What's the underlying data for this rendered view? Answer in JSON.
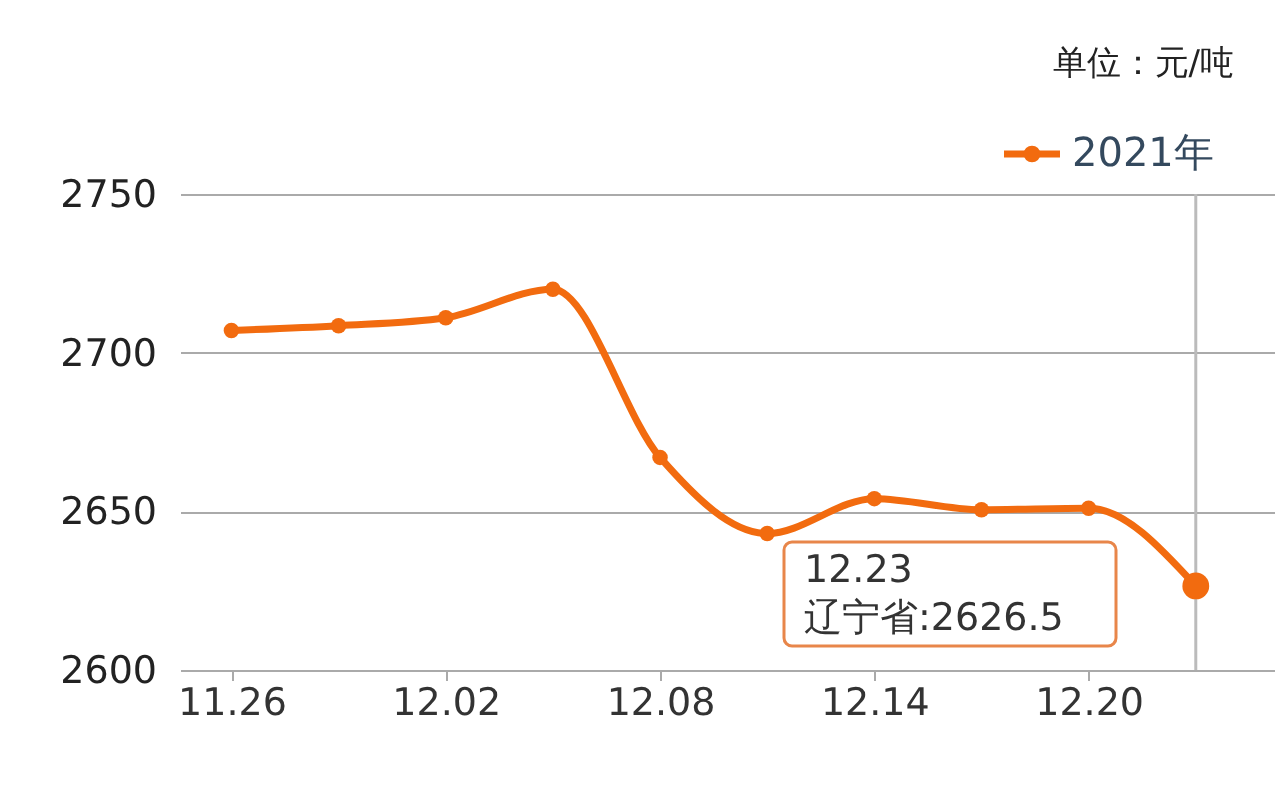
{
  "chart_data": {
    "type": "line",
    "categories": [
      "11.26",
      null,
      "12.02",
      null,
      "12.08",
      null,
      "12.14",
      null,
      "12.20",
      null
    ],
    "series": [
      {
        "name": "2021年",
        "color": "#f26b0f",
        "values": [
          2707,
          2708.5,
          2711,
          2720,
          2667,
          2643,
          2654,
          2650.5,
          2651,
          2626.5
        ]
      }
    ],
    "ylim": [
      2600,
      2750
    ],
    "yticks": [
      2600,
      2650,
      2700,
      2750
    ],
    "grid": "y",
    "legend": "top right",
    "marker": "circle",
    "line_style": "solid",
    "annotations": [
      "单位：元/吨",
      "12.23\n辽宁省:2626.5"
    ]
  }
}
